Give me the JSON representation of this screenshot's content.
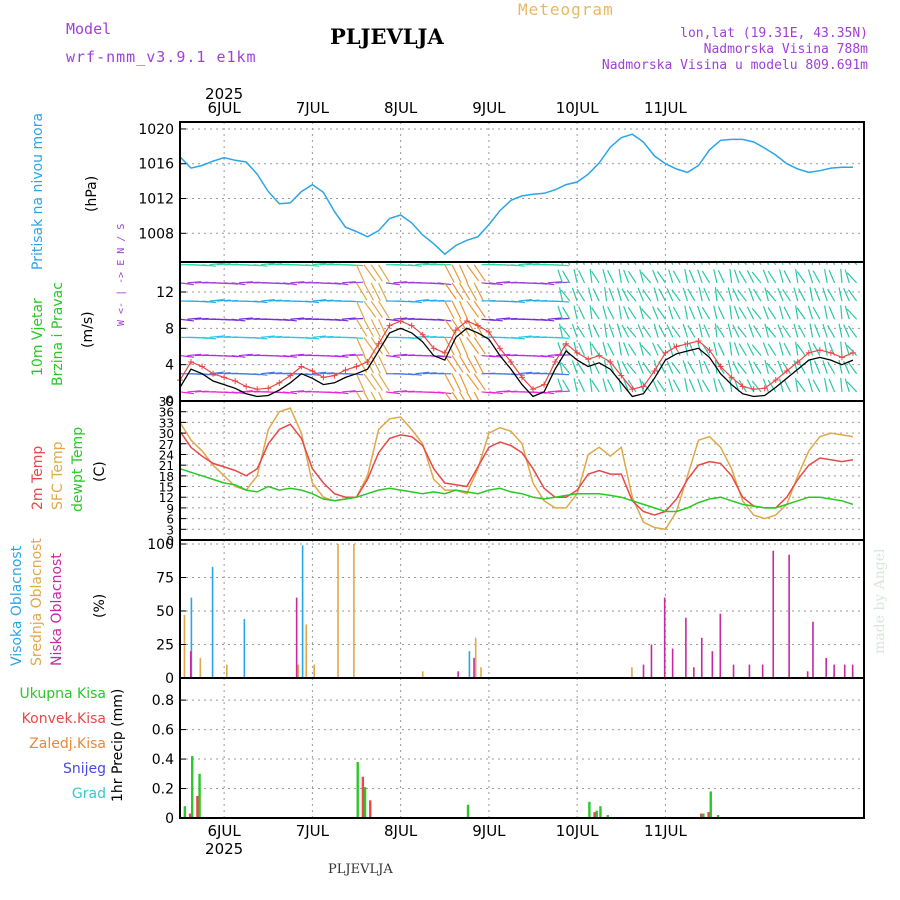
{
  "header": {
    "model_label": "Model",
    "model_name": "wrf-nmm_v3.9.1 e1km",
    "station": "PLJEVLJA",
    "meteogram": "Meteogram",
    "lonlat": "lon,lat (19.31E, 43.35N)",
    "altitude": "Nadmorska Visina 788m",
    "model_altitude": "Nadmorska Visina u modelu 809.691m"
  },
  "footer": {
    "station": "PLJEVLJA",
    "credit": "made by Angel"
  },
  "colors": {
    "pressure": "#2aa5e8",
    "temp2m": "#e84848",
    "sfc": "#e0a848",
    "dewpt": "#28c828",
    "high_cloud": "#2aa5e8",
    "mid_cloud": "#e0a848",
    "low_cloud": "#c828a0",
    "precip_total": "#28c828",
    "precip_conv": "#e84848",
    "precip_frozen": "#e88838",
    "snow": "#4848e8",
    "hail": "#38c8c8"
  },
  "chart_data": [
    {
      "type": "line",
      "panel": "pressure",
      "year": "2025",
      "day_labels": [
        "6JUL",
        "7JUL",
        "8JUL",
        "9JUL",
        "10JUL",
        "11JUL"
      ],
      "ylabel_lines": [
        "Pritisak na nivou mora",
        "(hPa)"
      ],
      "yticks": [
        1008,
        1012,
        1016,
        1020
      ],
      "ylim": [
        1004.7,
        1020.8
      ],
      "series": [
        {
          "hours": [
            0,
            3,
            6,
            9,
            12,
            15,
            18,
            21,
            24,
            27,
            30,
            33,
            36,
            39,
            42,
            45,
            48,
            51,
            54,
            57,
            60,
            63,
            66,
            69,
            72,
            75,
            78,
            81,
            84,
            87,
            90,
            93,
            96,
            99,
            102,
            105,
            108,
            111,
            114,
            117,
            120,
            123,
            126,
            129,
            132,
            135,
            138,
            141,
            144,
            147,
            150,
            153,
            156,
            159,
            162,
            165,
            168,
            171,
            174,
            177,
            180,
            183
          ],
          "values": [
            1016.8,
            1015.5,
            1015.8,
            1016.3,
            1016.7,
            1016.4,
            1016.2,
            1014.8,
            1012.8,
            1011.4,
            1011.5,
            1012.8,
            1013.6,
            1012.7,
            1010.5,
            1008.7,
            1008.2,
            1007.6,
            1008.3,
            1009.7,
            1010.1,
            1009.2,
            1007.8,
            1006.8,
            1005.6,
            1006.6,
            1007.2,
            1007.6,
            1009.0,
            1010.6,
            1011.8,
            1012.3,
            1012.5,
            1012.6,
            1013.0,
            1013.6,
            1013.9,
            1014.8,
            1016.1,
            1017.9,
            1019.0,
            1019.4,
            1018.5,
            1016.9,
            1016.0,
            1015.4,
            1015.0,
            1015.8,
            1017.6,
            1018.7,
            1018.8,
            1018.8,
            1018.5,
            1017.8,
            1017.0,
            1016.0,
            1015.4,
            1015.0,
            1015.2,
            1015.5,
            1015.6,
            1015.6
          ]
        }
      ]
    },
    {
      "type": "line",
      "panel": "wind",
      "ylabel_lines": [
        "10m Vjetar",
        "Brzina i Pravac",
        "(m/s)"
      ],
      "direction_key": "W <- | -> E  N / S",
      "yticks": [
        0,
        4,
        8,
        12
      ],
      "ylim": [
        0,
        15.3
      ],
      "series": [
        {
          "name": "speed",
          "hours": [
            0,
            3,
            6,
            9,
            12,
            15,
            18,
            21,
            24,
            27,
            30,
            33,
            36,
            39,
            42,
            45,
            48,
            51,
            54,
            57,
            60,
            63,
            66,
            69,
            72,
            75,
            78,
            81,
            84,
            87,
            90,
            93,
            96,
            99,
            102,
            105,
            108,
            111,
            114,
            117,
            120,
            123,
            126,
            129,
            132,
            135,
            138,
            141,
            144,
            147,
            150,
            153,
            156,
            159,
            162,
            165,
            168,
            171,
            174,
            177,
            180,
            183
          ],
          "values": [
            1.5,
            3.5,
            3.0,
            2.2,
            1.8,
            1.4,
            0.8,
            0.5,
            0.6,
            1.2,
            2.0,
            3.0,
            2.5,
            1.8,
            2.0,
            2.6,
            3.0,
            3.5,
            5.5,
            7.5,
            8.0,
            7.5,
            6.5,
            5.0,
            4.5,
            7.0,
            8.0,
            7.5,
            6.8,
            5.0,
            3.5,
            1.8,
            0.5,
            1.0,
            3.5,
            5.5,
            4.5,
            3.8,
            4.2,
            3.5,
            2.0,
            0.5,
            0.8,
            2.5,
            4.5,
            5.2,
            5.5,
            5.8,
            4.8,
            3.0,
            1.8,
            0.8,
            0.5,
            0.6,
            1.5,
            2.5,
            3.5,
            4.5,
            4.8,
            4.5,
            4.0,
            4.5
          ]
        }
      ]
    },
    {
      "type": "line",
      "panel": "temperature",
      "ylabel_lines": [
        "2m Temp",
        "SFC Temp",
        "dewpt Temp",
        "(C)"
      ],
      "yticks": [
        0,
        3,
        6,
        9,
        12,
        15,
        18,
        21,
        24,
        27,
        30,
        33,
        36,
        39
      ],
      "ylim": [
        0,
        39
      ],
      "hours": [
        0,
        3,
        6,
        9,
        12,
        15,
        18,
        21,
        24,
        27,
        30,
        33,
        36,
        39,
        42,
        45,
        48,
        51,
        54,
        57,
        60,
        63,
        66,
        69,
        72,
        75,
        78,
        81,
        84,
        87,
        90,
        93,
        96,
        99,
        102,
        105,
        108,
        111,
        114,
        117,
        120,
        123,
        126,
        129,
        132,
        135,
        138,
        141,
        144,
        147,
        150,
        153,
        156,
        159,
        162,
        165,
        168,
        171,
        174,
        177,
        180,
        183
      ],
      "series": [
        {
          "name": "2m Temp",
          "values": [
            30.5,
            26.0,
            23.5,
            21.5,
            20.5,
            19.5,
            18.0,
            20.0,
            27.0,
            31.0,
            32.5,
            28.5,
            20.0,
            16.0,
            13.0,
            12.0,
            12.0,
            17.0,
            24.5,
            28.5,
            29.5,
            29.0,
            26.5,
            20.0,
            16.0,
            15.5,
            15.0,
            20.5,
            26.0,
            27.5,
            26.5,
            24.5,
            20.0,
            14.5,
            12.0,
            12.0,
            14.0,
            18.5,
            19.5,
            18.5,
            18.5,
            11.0,
            8.0,
            7.0,
            8.0,
            11.5,
            17.0,
            21.0,
            22.0,
            21.5,
            18.0,
            12.0,
            9.5,
            9.0,
            9.0,
            12.0,
            17.0,
            21.0,
            23.0,
            22.5,
            22.0,
            22.5
          ]
        },
        {
          "name": "SFC Temp",
          "values": [
            33.0,
            28.0,
            25.0,
            21.0,
            18.0,
            15.0,
            14.0,
            18.0,
            31.0,
            36.0,
            37.0,
            30.0,
            16.0,
            12.0,
            11.0,
            11.5,
            12.0,
            18.0,
            31.0,
            34.0,
            34.5,
            31.0,
            27.0,
            17.0,
            14.0,
            14.0,
            13.0,
            20.0,
            30.0,
            31.5,
            30.5,
            27.0,
            16.0,
            11.0,
            9.0,
            9.0,
            13.0,
            24.0,
            26.0,
            23.5,
            26.0,
            12.0,
            5.0,
            3.5,
            3.0,
            8.0,
            18.0,
            28.0,
            29.0,
            26.0,
            20.0,
            11.0,
            7.0,
            6.0,
            7.0,
            10.0,
            18.0,
            25.0,
            29.0,
            30.0,
            29.5,
            29.0
          ]
        },
        {
          "name": "dewpt Temp",
          "values": [
            20.0,
            19.0,
            18.0,
            17.0,
            16.0,
            15.5,
            14.0,
            13.5,
            15.0,
            14.0,
            14.5,
            14.0,
            13.0,
            11.5,
            11.0,
            11.5,
            12.0,
            13.0,
            14.0,
            14.5,
            14.0,
            13.5,
            13.0,
            13.5,
            13.0,
            14.0,
            13.5,
            13.0,
            14.0,
            14.5,
            13.5,
            13.0,
            12.0,
            11.5,
            12.0,
            12.5,
            13.0,
            13.0,
            13.0,
            12.5,
            12.0,
            11.0,
            10.0,
            9.0,
            8.0,
            8.0,
            9.0,
            10.5,
            11.5,
            12.0,
            11.0,
            10.0,
            9.5,
            9.0,
            9.0,
            10.0,
            11.0,
            12.0,
            12.0,
            11.5,
            11.0,
            10.0
          ]
        }
      ]
    },
    {
      "type": "bar",
      "panel": "cloud",
      "ylabel_lines": [
        "Visoka Oblacnost",
        "Srednja Oblacnost",
        "Niska Oblacnost",
        "(%)"
      ],
      "yticks": [
        0,
        25,
        50,
        75,
        100
      ],
      "ylim": [
        0,
        103
      ],
      "series": [
        {
          "name": "Visoka Oblacnost",
          "hours": [
            4,
            12,
            24,
            46,
            109
          ],
          "values": [
            60,
            83,
            44,
            99,
            20
          ]
        },
        {
          "name": "Srednja Oblacnost",
          "hours": [
            1,
            7,
            17,
            44,
            47,
            50,
            59,
            65,
            91,
            111,
            113,
            170
          ],
          "values": [
            47,
            15,
            10,
            10,
            40,
            10,
            100,
            100,
            5,
            30,
            8,
            8
          ]
        },
        {
          "name": "Niska Oblacnost",
          "hours": [
            3,
            43,
            104,
            110,
            174,
            177,
            182,
            185,
            190,
            193,
            196,
            200,
            203,
            208,
            214,
            219,
            223,
            229,
            236,
            238,
            243,
            246,
            250,
            253
          ],
          "values": [
            20,
            60,
            5,
            15,
            10,
            25,
            60,
            22,
            45,
            8,
            30,
            20,
            48,
            10,
            10,
            10,
            95,
            92,
            5,
            42,
            15,
            10,
            10,
            10
          ]
        }
      ]
    },
    {
      "type": "bar",
      "panel": "precip",
      "ylabel_lines": [
        "1hr Precip (mm)"
      ],
      "legend": [
        "Ukupna Kisa",
        "Konvek.Kisa",
        "Zaledj.Kisa",
        "Snijeg",
        "Grad"
      ],
      "yticks": [
        0,
        0.2,
        0.4,
        0.6,
        0.8
      ],
      "ylim": [
        0,
        0.95
      ],
      "series": [
        {
          "name": "Ukupna Kisa",
          "hours": [
            1,
            3,
            5,
            48,
            50,
            78,
            111,
            113,
            114,
            116,
            142,
            144,
            146
          ],
          "values": [
            0.08,
            0.42,
            0.3,
            0.38,
            0.21,
            0.09,
            0.11,
            0.05,
            0.08,
            0.02,
            0.03,
            0.18,
            0.02
          ]
        },
        {
          "name": "Konvek.Kisa",
          "hours": [
            2,
            4,
            49,
            51,
            112,
            141,
            143
          ],
          "values": [
            0.03,
            0.15,
            0.28,
            0.12,
            0.04,
            0.03,
            0.04
          ]
        }
      ]
    }
  ]
}
